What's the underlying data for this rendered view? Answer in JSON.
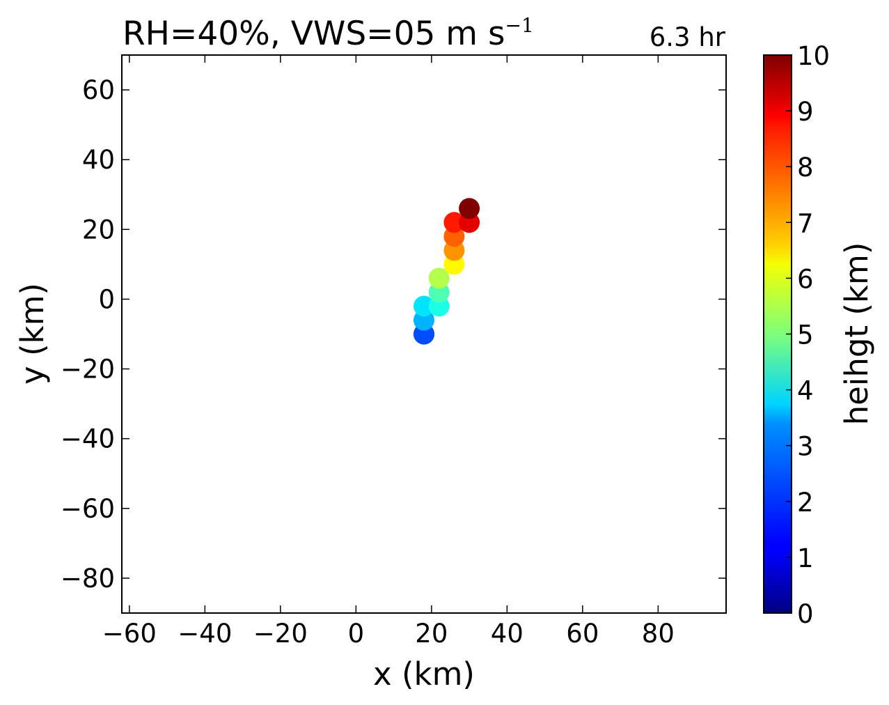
{
  "chart_data": {
    "type": "scatter",
    "title": "RH=40%, VWS=05 m s",
    "title_superscript": "−1",
    "time_label": "6.3 hr",
    "time_label_color": "#0000ff",
    "xlabel": "x (km)",
    "ylabel": "y (km)",
    "xlim": [
      -62,
      98
    ],
    "ylim": [
      -90,
      70
    ],
    "xticks": [
      -60,
      -40,
      -20,
      0,
      20,
      40,
      60,
      80
    ],
    "xtick_labels": [
      "−60",
      "−40",
      "−20",
      "0",
      "20",
      "40",
      "60",
      "80"
    ],
    "yticks": [
      -80,
      -60,
      -40,
      -20,
      0,
      20,
      40,
      60
    ],
    "ytick_labels": [
      "−80",
      "−60",
      "−40",
      "−20",
      "0",
      "20",
      "40",
      "60"
    ],
    "grid": false,
    "colormap": "jet",
    "colorbar": {
      "label": "heihgt (km)",
      "range": [
        0,
        10
      ],
      "ticks": [
        0,
        1,
        2,
        3,
        4,
        5,
        6,
        7,
        8,
        9,
        10
      ],
      "tick_labels": [
        "0",
        "1",
        "2",
        "3",
        "4",
        "5",
        "6",
        "7",
        "8",
        "9",
        "10"
      ]
    },
    "points": [
      {
        "x": 18,
        "y": -10,
        "height": 1.5
      },
      {
        "x": 18,
        "y": -10,
        "height": 2.0
      },
      {
        "x": 18,
        "y": -6,
        "height": 3.0
      },
      {
        "x": 18,
        "y": -2,
        "height": 3.5
      },
      {
        "x": 22,
        "y": -2,
        "height": 4.0
      },
      {
        "x": 22,
        "y": 2,
        "height": 4.5
      },
      {
        "x": 22,
        "y": 6,
        "height": 5.5
      },
      {
        "x": 26,
        "y": 10,
        "height": 6.3
      },
      {
        "x": 26,
        "y": 14,
        "height": 7.3
      },
      {
        "x": 26,
        "y": 18,
        "height": 7.8
      },
      {
        "x": 26,
        "y": 22,
        "height": 8.5
      },
      {
        "x": 30,
        "y": 22,
        "height": 9.0
      },
      {
        "x": 30,
        "y": 26,
        "height": 10.0
      }
    ]
  }
}
